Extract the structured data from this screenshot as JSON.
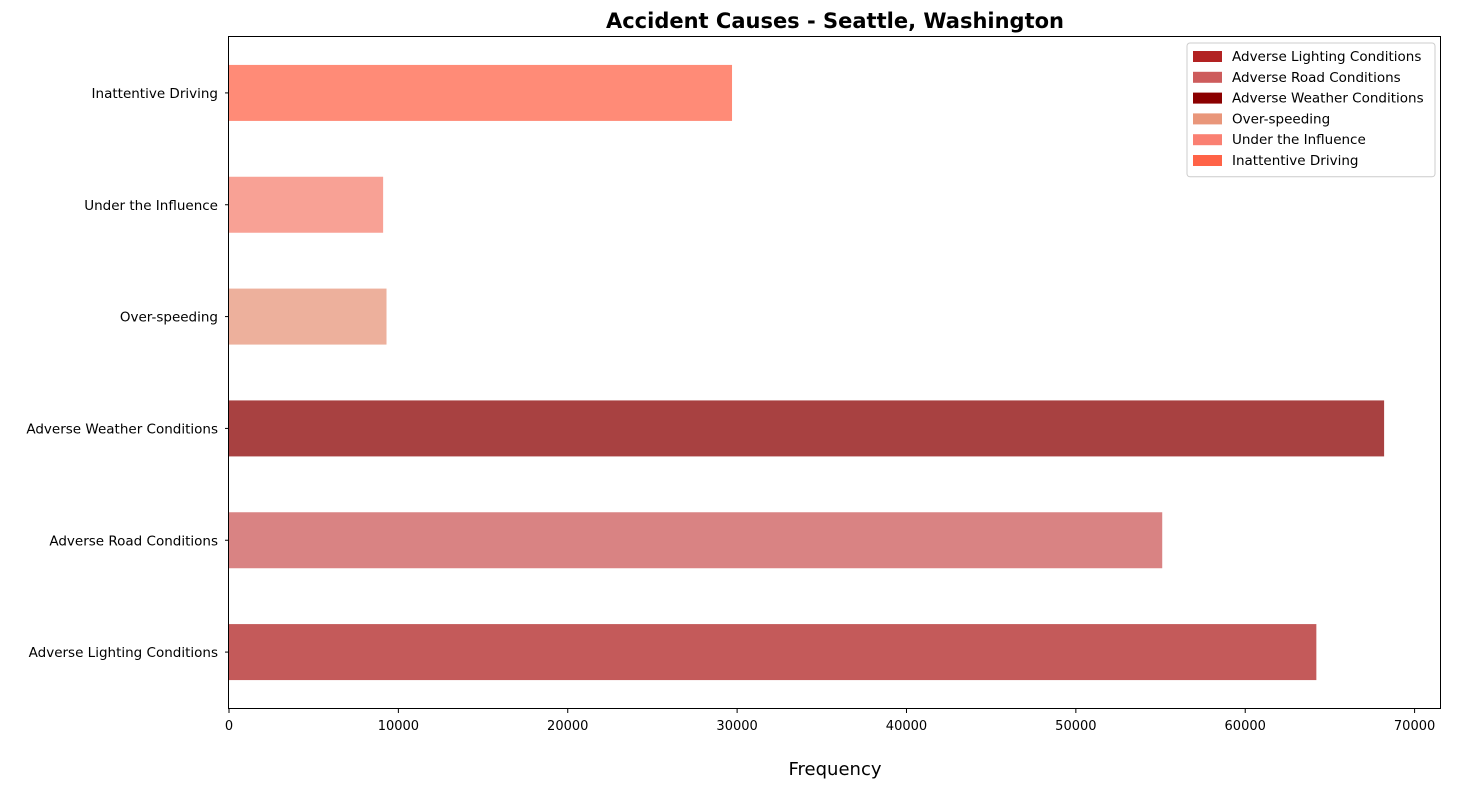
{
  "chart_data": {
    "type": "bar",
    "orientation": "horizontal",
    "title": "Accident Causes - Seattle, Washington",
    "xlabel": "Frequency",
    "ylabel": "",
    "xlim": [
      0,
      71500
    ],
    "xticks": [
      0,
      10000,
      20000,
      30000,
      40000,
      50000,
      60000,
      70000
    ],
    "xtick_labels": [
      "0",
      "10000",
      "20000",
      "30000",
      "40000",
      "50000",
      "60000",
      "70000"
    ],
    "grid": false,
    "legend_position": "top-right",
    "bars": [
      {
        "category": "Adverse Lighting Conditions",
        "value": 64200,
        "color": "#c45a5a"
      },
      {
        "category": "Adverse Road Conditions",
        "value": 55100,
        "color": "#d98383"
      },
      {
        "category": "Adverse Weather Conditions",
        "value": 68200,
        "color": "#a84141"
      },
      {
        "category": "Over-speeding",
        "value": 9300,
        "color": "#edb09c"
      },
      {
        "category": "Under the Influence",
        "value": 9100,
        "color": "#f8a195"
      },
      {
        "category": "Inattentive Driving",
        "value": 29700,
        "color": "#ff8b77"
      }
    ],
    "legend": [
      {
        "label": "Adverse Lighting Conditions",
        "color": "#b22222"
      },
      {
        "label": "Adverse Road Conditions",
        "color": "#cd5c5c"
      },
      {
        "label": "Adverse Weather Conditions",
        "color": "#8b0000"
      },
      {
        "label": "Over-speeding",
        "color": "#e9967a"
      },
      {
        "label": "Under the Influence",
        "color": "#fa8072"
      },
      {
        "label": "Inattentive Driving",
        "color": "#ff6347"
      }
    ]
  }
}
